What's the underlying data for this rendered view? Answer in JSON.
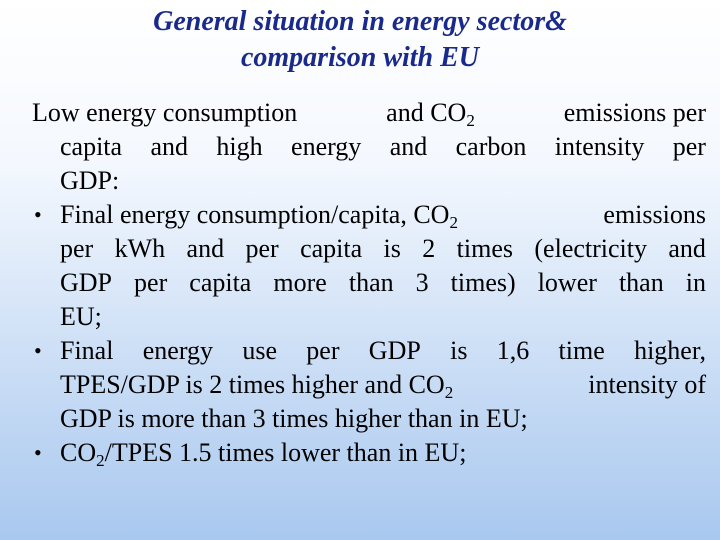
{
  "slide": {
    "title_line1": "General situation in energy sector&",
    "title_line2": "comparison with EU"
  },
  "intro": {
    "l1_a": "Low energy consumption",
    "l1_b": "and CO",
    "l1_sub": "2",
    "l1_c": "emissions per",
    "l2": "capita and high energy and carbon intensity per",
    "l3": "GDP:"
  },
  "bullets": {
    "symbol": "•",
    "b1": {
      "l1_a": "Final energy consumption/capita, CO",
      "l1_sub": "2",
      "l1_b": "emissions",
      "l2": "per kWh and per capita is 2 times (electricity and",
      "l3": "GDP per capita more than 3 times) lower than in",
      "l4": "EU;"
    },
    "b2": {
      "l1": "Final energy use per GDP is 1,6 time higher,",
      "l2_a": "TPES/GDP is 2 times higher and CO",
      "l2_sub": "2",
      "l2_b": "intensity of",
      "l3": "GDP is more than 3 times higher than in EU;"
    },
    "b3": {
      "l1_a": "CO",
      "l1_sub": "2",
      "l1_b": "/TPES 1.5 times lower than in EU;"
    }
  }
}
